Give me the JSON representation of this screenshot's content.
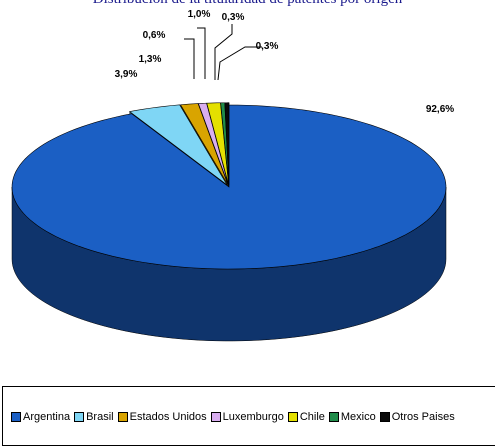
{
  "chart_data": {
    "type": "pie",
    "title": "Distribución de la titularidad de patentes por origen",
    "categories": [
      "Argentina",
      "Brasil",
      "Estados Unidos",
      "Luxemburgo",
      "Chile",
      "Mexico",
      "Otros Paises"
    ],
    "values": [
      92.6,
      3.9,
      1.3,
      0.6,
      1.0,
      0.3,
      0.3
    ],
    "labels": [
      "92,6%",
      "3,9%",
      "1,3%",
      "0,6%",
      "1,0%",
      "0,3%",
      "0,3%"
    ],
    "colors": [
      "#1b5fc4",
      "#7fd6f5",
      "#d9a400",
      "#d9aef0",
      "#e4e000",
      "#208c4a",
      "#0a0a0a"
    ],
    "legend_position": "bottom",
    "style": "3d-exploded"
  }
}
